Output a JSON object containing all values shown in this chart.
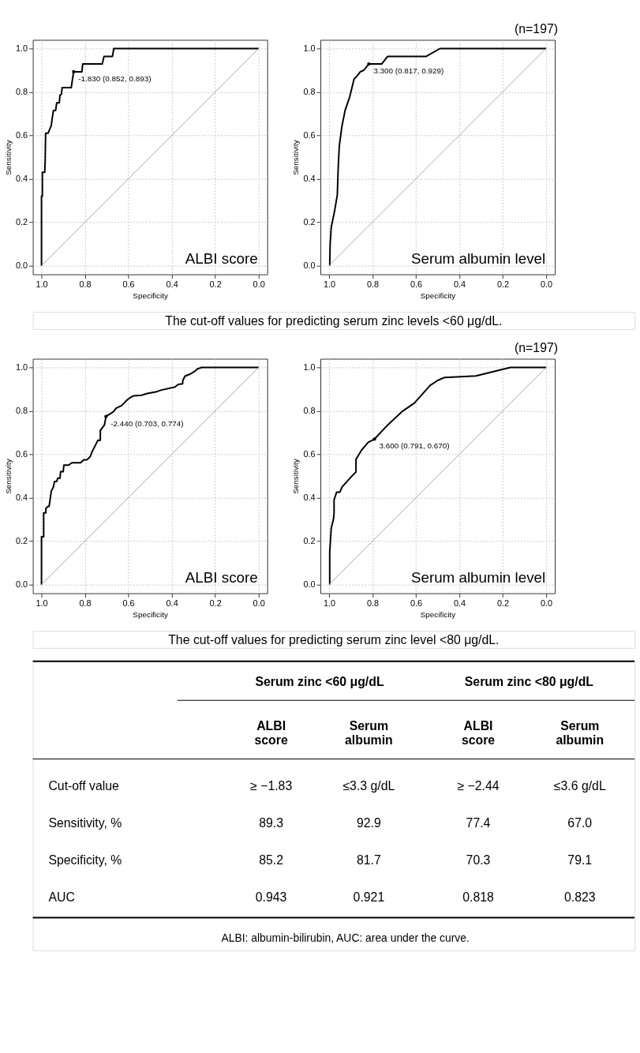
{
  "chart_data": [
    {
      "type": "line",
      "xlabel": "Specificity",
      "ylabel": "Sensitivity",
      "xlim": [
        1.04,
        -0.04
      ],
      "ylim": [
        -0.04,
        1.04
      ],
      "xticks": [
        {
          "value": 1,
          "label": "1.0"
        },
        {
          "value": 0.8,
          "label": "0.8"
        },
        {
          "value": 0.6,
          "label": "0.6"
        },
        {
          "value": 0.4,
          "label": "0.4"
        },
        {
          "value": 0.2,
          "label": "0.2"
        },
        {
          "value": 0,
          "label": "0.0"
        }
      ],
      "yticks": [
        {
          "value": 0,
          "label": "0.0"
        },
        {
          "value": 0.2,
          "label": "0.2"
        },
        {
          "value": 0.4,
          "label": "0.4"
        },
        {
          "value": 0.6,
          "label": "0.6"
        },
        {
          "value": 0.8,
          "label": "0.8"
        },
        {
          "value": 1,
          "label": "1.0"
        }
      ],
      "grid": true,
      "series": [
        {
          "color": "#000000",
          "x": [
            1.0,
            1.0,
            0.996,
            0.996,
            0.985,
            0.983,
            0.981,
            0.97,
            0.955,
            0.952,
            0.945,
            0.935,
            0.93,
            0.918,
            0.915,
            0.908,
            0.905,
            0.863,
            0.852,
            0.814,
            0.81,
            0.72,
            0.712,
            0.673,
            0.667,
            0.0
          ],
          "values": [
            0.0,
            0.32,
            0.32,
            0.43,
            0.43,
            0.49,
            0.61,
            0.61,
            0.645,
            0.67,
            0.715,
            0.715,
            0.75,
            0.75,
            0.785,
            0.79,
            0.82,
            0.82,
            0.893,
            0.893,
            0.929,
            0.929,
            0.964,
            0.964,
            1.0,
            1.0
          ]
        },
        {
          "color": "#a6a6a6",
          "x": [
            1.0,
            0.0
          ],
          "values": [
            0.0,
            1.0
          ]
        }
      ],
      "annotations": [
        {
          "text": "-1.830 (0.852, 0.893)",
          "x": 0.852,
          "y": 0.893
        },
        "ALBI score"
      ]
    },
    {
      "type": "line",
      "xlabel": "Specificity",
      "ylabel": "Sensitivity",
      "xlim": [
        1.04,
        -0.04
      ],
      "ylim": [
        -0.04,
        1.04
      ],
      "xticks": [
        {
          "value": 1,
          "label": "1.0"
        },
        {
          "value": 0.8,
          "label": "0.8"
        },
        {
          "value": 0.6,
          "label": "0.6"
        },
        {
          "value": 0.4,
          "label": "0.4"
        },
        {
          "value": 0.2,
          "label": "0.2"
        },
        {
          "value": 0,
          "label": "0.0"
        }
      ],
      "yticks": [
        {
          "value": 0,
          "label": "0.0"
        },
        {
          "value": 0.2,
          "label": "0.2"
        },
        {
          "value": 0.4,
          "label": "0.4"
        },
        {
          "value": 0.6,
          "label": "0.6"
        },
        {
          "value": 0.8,
          "label": "0.8"
        },
        {
          "value": 1,
          "label": "1.0"
        }
      ],
      "grid": true,
      "series": [
        {
          "color": "#000000",
          "x": [
            0.997,
            0.995,
            0.99,
            0.975,
            0.962,
            0.958,
            0.953,
            0.941,
            0.926,
            0.905,
            0.885,
            0.87,
            0.856,
            0.84,
            0.817,
            0.758,
            0.73,
            0.552,
            0.489,
            0.0
          ],
          "values": [
            0.0,
            0.1,
            0.177,
            0.25,
            0.326,
            0.45,
            0.55,
            0.641,
            0.716,
            0.777,
            0.859,
            0.875,
            0.893,
            0.9,
            0.929,
            0.929,
            0.964,
            0.964,
            1.0,
            1.0
          ]
        },
        {
          "color": "#a6a6a6",
          "x": [
            1.0,
            0.0
          ],
          "values": [
            0.0,
            1.0
          ]
        }
      ],
      "annotations": [
        {
          "text": "3.300 (0.817, 0.929)",
          "x": 0.817,
          "y": 0.929
        },
        "Serum albumin level",
        "(n=197)",
        "The cut-off values for predicting serum zinc levels <60 μg/dL."
      ]
    },
    {
      "type": "line",
      "xlabel": "Specificity",
      "ylabel": "Sensitivity",
      "xlim": [
        1.04,
        -0.04
      ],
      "ylim": [
        -0.04,
        1.04
      ],
      "xticks": [
        {
          "value": 1,
          "label": "1.0"
        },
        {
          "value": 0.8,
          "label": "0.8"
        },
        {
          "value": 0.6,
          "label": "0.6"
        },
        {
          "value": 0.4,
          "label": "0.4"
        },
        {
          "value": 0.2,
          "label": "0.2"
        },
        {
          "value": 0,
          "label": "0.0"
        }
      ],
      "yticks": [
        {
          "value": 0,
          "label": "0.0"
        },
        {
          "value": 0.2,
          "label": "0.2"
        },
        {
          "value": 0.4,
          "label": "0.4"
        },
        {
          "value": 0.6,
          "label": "0.6"
        },
        {
          "value": 0.8,
          "label": "0.8"
        },
        {
          "value": 1,
          "label": "1.0"
        }
      ],
      "grid": true,
      "series": [
        {
          "color": "#000000",
          "x": [
            1.0,
            1.0,
            0.99,
            0.99,
            0.98,
            0.98,
            0.97,
            0.965,
            0.955,
            0.952,
            0.945,
            0.94,
            0.93,
            0.925,
            0.915,
            0.912,
            0.9,
            0.897,
            0.875,
            0.86,
            0.82,
            0.805,
            0.79,
            0.775,
            0.768,
            0.755,
            0.74,
            0.729,
            0.729,
            0.71,
            0.703,
            0.67,
            0.656,
            0.63,
            0.605,
            0.59,
            0.577,
            0.54,
            0.513,
            0.47,
            0.451,
            0.385,
            0.37,
            0.35,
            0.349,
            0.339,
            0.314,
            0.29,
            0.283,
            0.262,
            0.0
          ],
          "values": [
            0.0,
            0.22,
            0.22,
            0.33,
            0.33,
            0.35,
            0.36,
            0.36,
            0.43,
            0.436,
            0.45,
            0.475,
            0.475,
            0.49,
            0.49,
            0.52,
            0.52,
            0.55,
            0.55,
            0.561,
            0.561,
            0.575,
            0.575,
            0.59,
            0.61,
            0.635,
            0.665,
            0.665,
            0.71,
            0.735,
            0.774,
            0.795,
            0.812,
            0.825,
            0.851,
            0.862,
            0.869,
            0.872,
            0.88,
            0.888,
            0.895,
            0.91,
            0.922,
            0.925,
            0.94,
            0.96,
            0.97,
            0.985,
            0.993,
            1.0,
            1.0
          ]
        },
        {
          "color": "#a6a6a6",
          "x": [
            1.0,
            0.0
          ],
          "values": [
            0.0,
            1.0
          ]
        }
      ],
      "annotations": [
        {
          "text": "-2.440 (0.703, 0.774)",
          "x": 0.703,
          "y": 0.774
        },
        "ALBI score"
      ]
    },
    {
      "type": "line",
      "xlabel": "Specificity",
      "ylabel": "Sensitivity",
      "xlim": [
        1.04,
        -0.04
      ],
      "ylim": [
        -0.04,
        1.04
      ],
      "xticks": [
        {
          "value": 1,
          "label": "1.0"
        },
        {
          "value": 0.8,
          "label": "0.8"
        },
        {
          "value": 0.6,
          "label": "0.6"
        },
        {
          "value": 0.4,
          "label": "0.4"
        },
        {
          "value": 0.2,
          "label": "0.2"
        },
        {
          "value": 0,
          "label": "0.0"
        }
      ],
      "yticks": [
        {
          "value": 0,
          "label": "0.0"
        },
        {
          "value": 0.2,
          "label": "0.2"
        },
        {
          "value": 0.4,
          "label": "0.4"
        },
        {
          "value": 0.6,
          "label": "0.6"
        },
        {
          "value": 0.8,
          "label": "0.8"
        },
        {
          "value": 1,
          "label": "1.0"
        }
      ],
      "grid": true,
      "series": [
        {
          "color": "#000000",
          "x": [
            0.997,
            0.997,
            0.99,
            0.98,
            0.977,
            0.977,
            0.965,
            0.95,
            0.94,
            0.89,
            0.876,
            0.876,
            0.85,
            0.82,
            0.791,
            0.73,
            0.664,
            0.607,
            0.535,
            0.5,
            0.468,
            0.324,
            0.165,
            0.0
          ],
          "values": [
            0.0,
            0.15,
            0.26,
            0.3,
            0.33,
            0.39,
            0.426,
            0.426,
            0.45,
            0.505,
            0.518,
            0.577,
            0.62,
            0.655,
            0.67,
            0.735,
            0.797,
            0.836,
            0.917,
            0.94,
            0.954,
            0.961,
            1.0,
            1.0
          ]
        },
        {
          "color": "#a6a6a6",
          "x": [
            1.0,
            0.0
          ],
          "values": [
            0.0,
            1.0
          ]
        }
      ],
      "annotations": [
        {
          "text": "3.600 (0.791, 0.670)",
          "x": 0.791,
          "y": 0.67
        },
        "Serum albumin level",
        "(n=197)",
        "The cut-off values for predicting serum zinc level <80 μg/dL."
      ]
    },
    {
      "type": "other",
      "annotations": [
        "Serum zinc <60 μg/dL",
        "Serum zinc <80 μg/dL",
        "ALBI score",
        "Serum albumin",
        "ALBI score",
        "Serum albumin",
        "Cut-off value",
        "≥ −1.83",
        "≤3.3 g/dL",
        "≥ −2.44",
        "≤3.6 g/dL",
        "Sensitivity, %",
        "89.3",
        "92.9",
        "77.4",
        "67.0",
        "Specificity, %",
        "85.2",
        "81.7",
        "70.3",
        "79.1",
        "AUC",
        "0.943",
        "0.921",
        "0.818",
        "0.823",
        "ALBI: albumin-bilirubin, AUC: area under the curve."
      ]
    }
  ]
}
